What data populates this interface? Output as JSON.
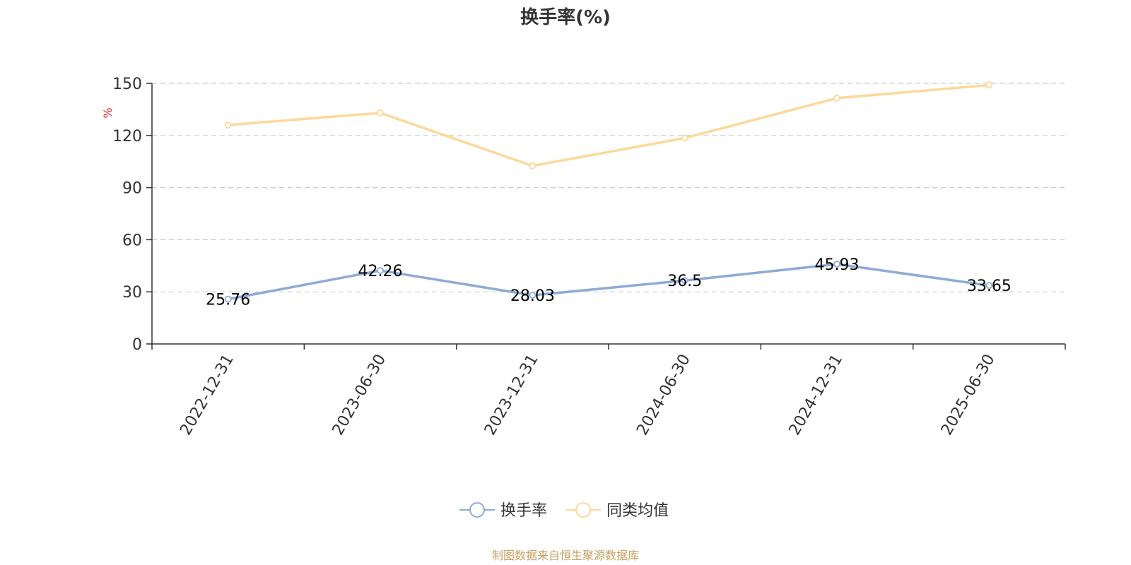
{
  "chart_data": {
    "type": "line",
    "title": "换手率(%)",
    "ylabel": "%",
    "ylim": [
      0,
      150
    ],
    "yticks": [
      0,
      30,
      60,
      90,
      120,
      150
    ],
    "categories": [
      "2022-12-31",
      "2023-06-30",
      "2023-12-31",
      "2024-06-30",
      "2024-12-31",
      "2025-06-30"
    ],
    "grid": true,
    "legend_position": "bottom-center",
    "series": [
      {
        "name": "换手率",
        "values": [
          25.76,
          42.26,
          28.03,
          36.5,
          45.93,
          33.65
        ],
        "labels": [
          "25.76",
          "42.26",
          "28.03",
          "36.5",
          "45.93",
          "33.65"
        ],
        "color": "#8eaad6",
        "show_labels": true
      },
      {
        "name": "同类均值",
        "values": [
          126.0,
          133.0,
          102.5,
          118.5,
          141.5,
          149.0
        ],
        "color": "#fdd89a",
        "show_labels": false
      }
    ],
    "unit_color": "#e02020"
  },
  "source": {
    "text": "制图数据来自恒生聚源数据库",
    "color": "#c8a060"
  }
}
